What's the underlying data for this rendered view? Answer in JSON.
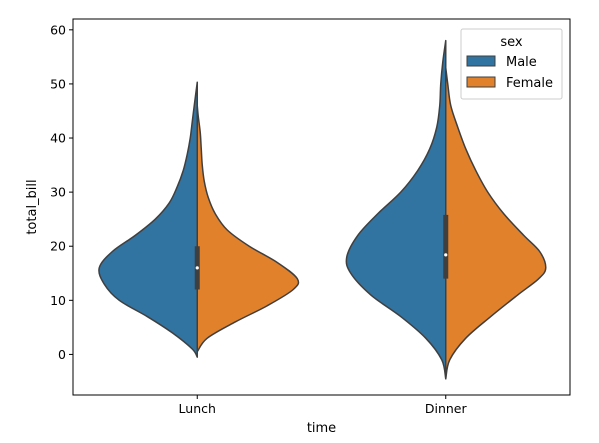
{
  "chart_data": {
    "type": "violin",
    "split": true,
    "xlabel": "time",
    "ylabel": "total_bill",
    "categories": [
      "Lunch",
      "Dinner"
    ],
    "ylim": [
      -7.5,
      62
    ],
    "yticks": [
      0,
      10,
      20,
      30,
      40,
      50,
      60
    ],
    "grid": false,
    "legend": {
      "title": "sex",
      "placement": "top-right"
    },
    "series": [
      {
        "name": "Male",
        "color": "#3274a1",
        "violins": [
          {
            "category": "Lunch",
            "density": [
              [
                -0.5,
                0.0
              ],
              [
                1,
                0.05
              ],
              [
                4,
                0.25
              ],
              [
                7,
                0.5
              ],
              [
                10,
                0.78
              ],
              [
                13,
                0.93
              ],
              [
                16,
                0.98
              ],
              [
                19,
                0.85
              ],
              [
                22,
                0.62
              ],
              [
                25,
                0.42
              ],
              [
                28,
                0.28
              ],
              [
                31,
                0.2
              ],
              [
                34,
                0.14
              ],
              [
                37,
                0.1
              ],
              [
                40,
                0.07
              ],
              [
                43,
                0.05
              ],
              [
                46,
                0.03
              ],
              [
                50.3,
                0.0
              ]
            ]
          },
          {
            "category": "Dinner",
            "density": [
              [
                -4.5,
                0.0
              ],
              [
                -1,
                0.04
              ],
              [
                3,
                0.2
              ],
              [
                7,
                0.45
              ],
              [
                11,
                0.75
              ],
              [
                15,
                0.95
              ],
              [
                18,
                0.99
              ],
              [
                22,
                0.88
              ],
              [
                26,
                0.68
              ],
              [
                30,
                0.45
              ],
              [
                34,
                0.28
              ],
              [
                38,
                0.16
              ],
              [
                42,
                0.09
              ],
              [
                46,
                0.06
              ],
              [
                50,
                0.05
              ],
              [
                54,
                0.03
              ],
              [
                58,
                0.0
              ]
            ]
          }
        ]
      },
      {
        "name": "Female",
        "color": "#e1812c",
        "violins": [
          {
            "category": "Lunch",
            "density": [
              [
                0.5,
                0.0
              ],
              [
                3,
                0.1
              ],
              [
                6,
                0.38
              ],
              [
                9,
                0.7
              ],
              [
                12,
                0.96
              ],
              [
                14,
                1.0
              ],
              [
                17,
                0.8
              ],
              [
                20,
                0.52
              ],
              [
                23,
                0.3
              ],
              [
                26,
                0.18
              ],
              [
                29,
                0.11
              ],
              [
                32,
                0.07
              ],
              [
                35,
                0.05
              ],
              [
                38,
                0.04
              ],
              [
                41,
                0.03
              ],
              [
                44,
                0.01
              ],
              [
                46,
                0.0
              ]
            ]
          },
          {
            "category": "Dinner",
            "density": [
              [
                -4.5,
                0.0
              ],
              [
                -1,
                0.04
              ],
              [
                3,
                0.2
              ],
              [
                7,
                0.45
              ],
              [
                11,
                0.72
              ],
              [
                14,
                0.93
              ],
              [
                16,
                1.0
              ],
              [
                19,
                0.94
              ],
              [
                22,
                0.78
              ],
              [
                26,
                0.58
              ],
              [
                30,
                0.42
              ],
              [
                34,
                0.3
              ],
              [
                38,
                0.2
              ],
              [
                42,
                0.12
              ],
              [
                46,
                0.05
              ],
              [
                50,
                0.02
              ],
              [
                53,
                0.0
              ]
            ]
          }
        ]
      }
    ],
    "inner_box": [
      {
        "category": "Lunch",
        "q1": 12.0,
        "median": 16.0,
        "q3": 20.0
      },
      {
        "category": "Dinner",
        "q1": 14.0,
        "median": 18.4,
        "q3": 25.8
      }
    ],
    "whiskers": [
      {
        "category": "Lunch",
        "low": -0.5,
        "high": 50.3
      },
      {
        "category": "Dinner",
        "low": -4.5,
        "high": 58.0
      }
    ],
    "colors": {
      "edge": "#3f3f3f",
      "frame": "#000000"
    }
  }
}
